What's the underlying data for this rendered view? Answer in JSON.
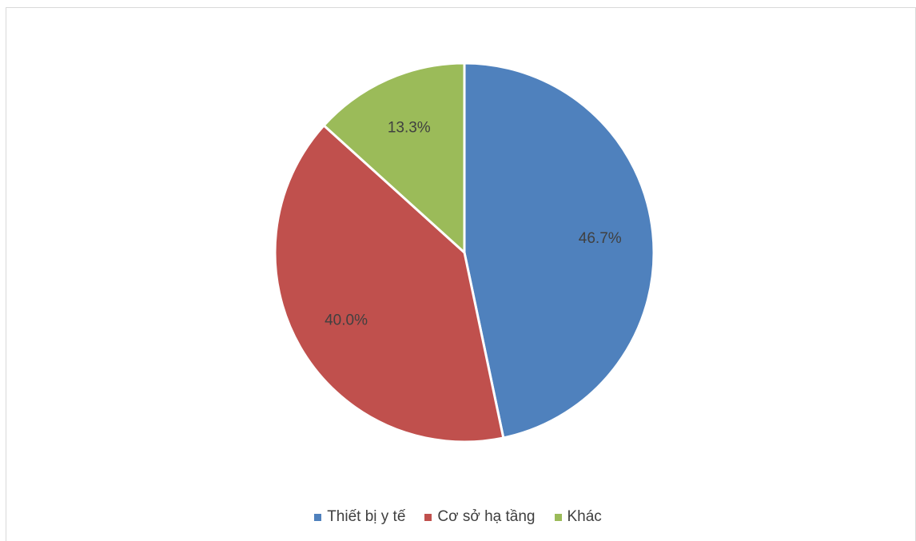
{
  "chart_data": {
    "type": "pie",
    "title": "",
    "categories": [
      "Thiết bị y tế",
      "Cơ sở hạ tầng",
      "Khác"
    ],
    "values": [
      46.7,
      40.0,
      13.3
    ],
    "labels": [
      "46.7%",
      "40.0%",
      "13.3%"
    ],
    "colors": [
      "#4f81bd",
      "#c0504d",
      "#9bbb59"
    ],
    "start_angle_deg": 0,
    "direction": "clockwise",
    "legend_position": "bottom"
  }
}
